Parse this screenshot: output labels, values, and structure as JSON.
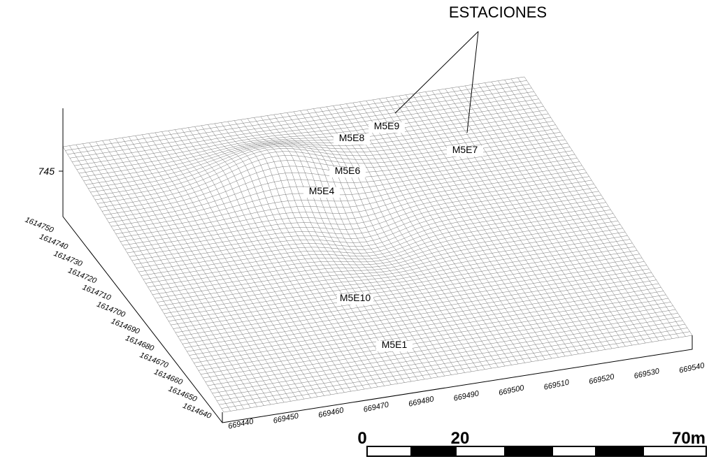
{
  "annotation": "ESTACIONES",
  "z_axis": {
    "label": "745"
  },
  "stations": [
    "M5E9",
    "M5E8",
    "M5E7",
    "M5E6",
    "M5E4",
    "M5E10",
    "M5E1"
  ],
  "y_axis": {
    "ticks": [
      "1614750",
      "1614740",
      "1614730",
      "1614720",
      "1614710",
      "1614700",
      "1614690",
      "1614680",
      "1614670",
      "1614660",
      "1614650",
      "1614640"
    ]
  },
  "x_axis": {
    "ticks": [
      "669440",
      "669450",
      "669460",
      "669470",
      "669480",
      "669490",
      "669500",
      "669510",
      "669520",
      "669530",
      "669540"
    ]
  },
  "scale_bar": {
    "labels": [
      "0",
      "20",
      "70m"
    ]
  }
}
